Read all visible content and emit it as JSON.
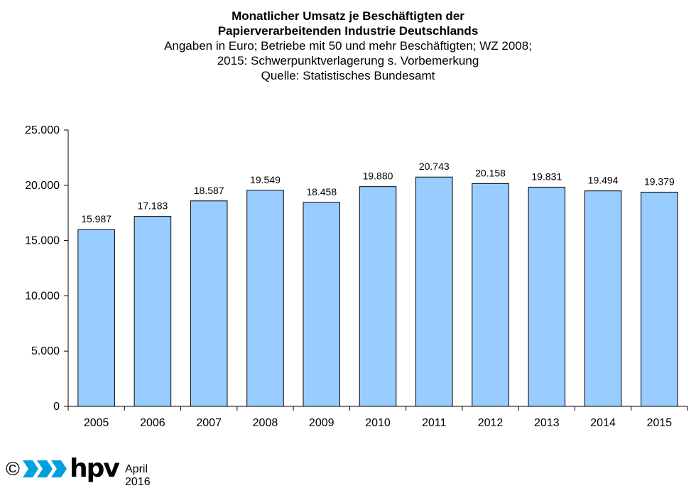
{
  "chart_data": {
    "type": "bar",
    "title_lines": [
      "Monatlicher Umsatz je Beschäftigten der",
      "Papierverarbeitenden Industrie Deutschlands"
    ],
    "subtitle_lines": [
      "Angaben in Euro; Betriebe mit 50 und mehr Beschäftigten; WZ 2008;",
      "2015: Schwerpunktverlagerung s. Vorbemerkung",
      "Quelle: Statistisches Bundesamt"
    ],
    "categories": [
      "2005",
      "2006",
      "2007",
      "2008",
      "2009",
      "2010",
      "2011",
      "2012",
      "2013",
      "2014",
      "2015"
    ],
    "values": [
      15987,
      17183,
      18587,
      19549,
      18458,
      19880,
      20743,
      20158,
      19831,
      19494,
      19379
    ],
    "value_labels": [
      "15.987",
      "17.183",
      "18.587",
      "19.549",
      "18.458",
      "19.880",
      "20.743",
      "20.158",
      "19.831",
      "19.494",
      "19.379"
    ],
    "ylim": [
      0,
      25000
    ],
    "yticks": [
      0,
      5000,
      10000,
      15000,
      20000,
      25000
    ],
    "ytick_labels": [
      "0",
      "5.000",
      "10.000",
      "15.000",
      "20.000",
      "25.000"
    ],
    "xlabel": "",
    "ylabel": "",
    "grid": false,
    "bar_color": "#99ccff",
    "bar_edge_color": "#000000"
  },
  "footer": {
    "copyright_symbol": "©",
    "logo_icon": "hpv-arrows-logo",
    "logo_text": "hpv",
    "date": "April 2016",
    "logo_color": "#00a0e0"
  }
}
